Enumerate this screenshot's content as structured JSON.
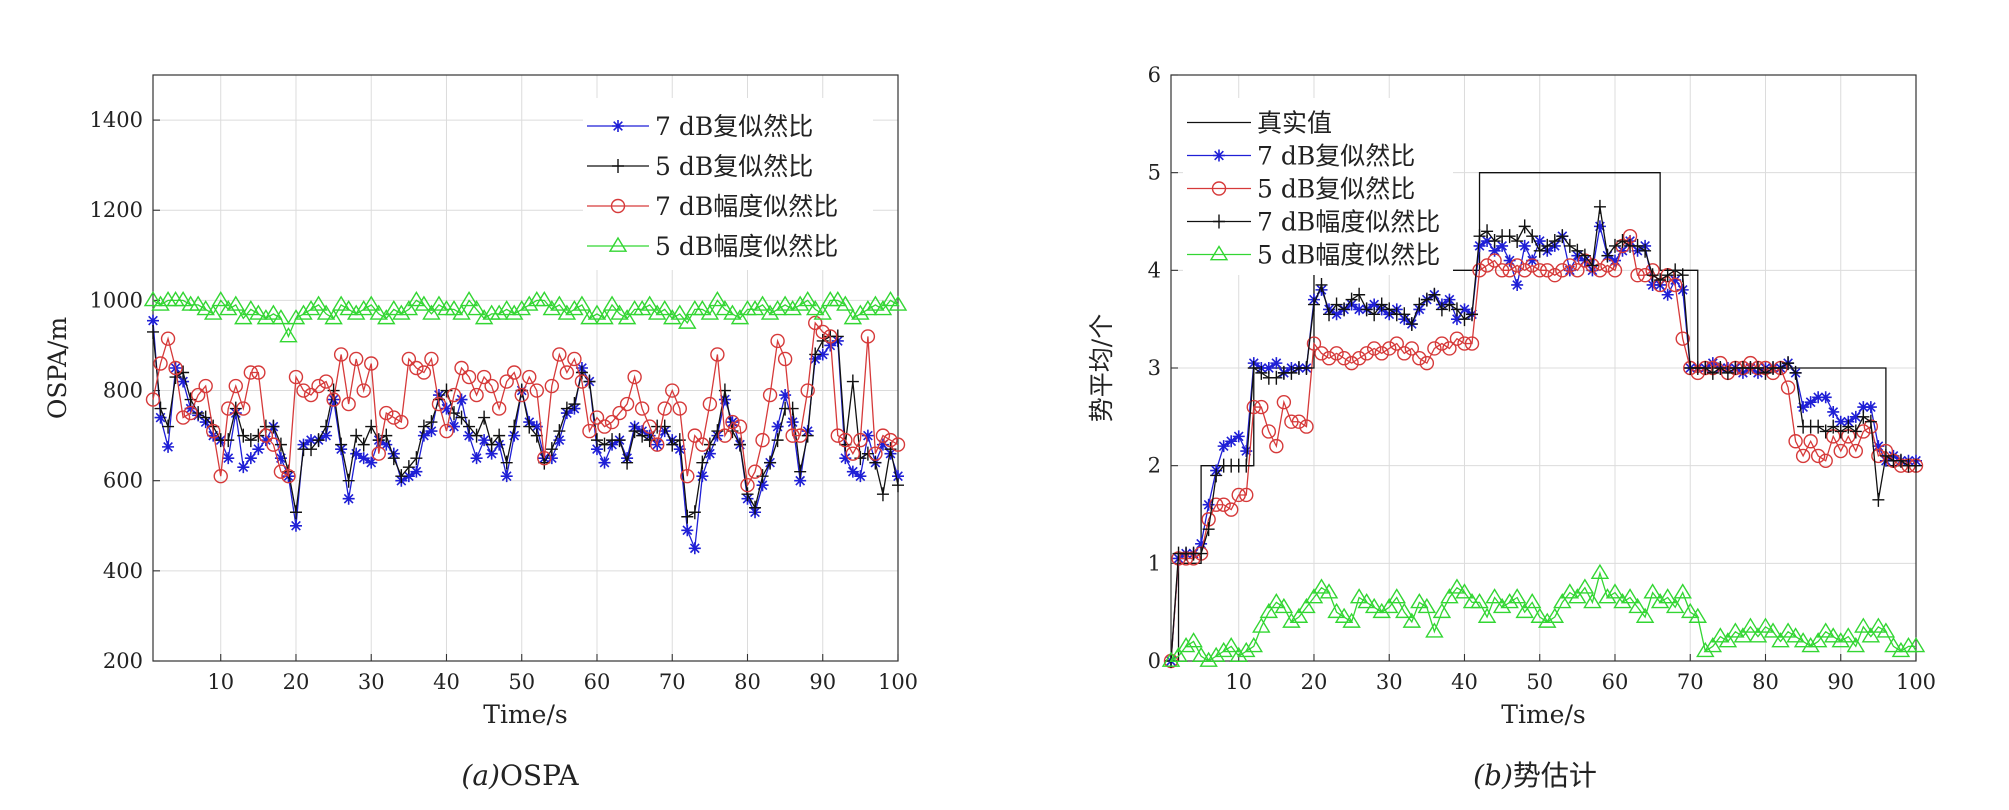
{
  "chart_data": [
    {
      "id": "a",
      "type": "line",
      "caption_letter": "(a)",
      "caption_text": "OSPA",
      "xlabel": "Time/s",
      "ylabel": "OSPA/m",
      "xlim": [
        1,
        100
      ],
      "ylim": [
        200,
        1500
      ],
      "xticks": [
        10,
        20,
        30,
        40,
        50,
        60,
        70,
        80,
        90,
        100
      ],
      "yticks": [
        200,
        400,
        600,
        800,
        1000,
        1200,
        1400
      ],
      "grid": true,
      "legend_position": "top-right",
      "series": [
        {
          "name": "7 dB复似然比",
          "color": "#1f1fd6",
          "marker": "star",
          "values": [
            955,
            740,
            675,
            850,
            820,
            760,
            745,
            730,
            700,
            690,
            650,
            750,
            630,
            650,
            670,
            690,
            720,
            650,
            610,
            500,
            680,
            690,
            690,
            700,
            780,
            670,
            560,
            660,
            650,
            640,
            690,
            680,
            660,
            600,
            610,
            620,
            700,
            710,
            790,
            760,
            720,
            780,
            700,
            650,
            690,
            660,
            680,
            610,
            700,
            800,
            730,
            720,
            650,
            650,
            690,
            750,
            760,
            850,
            820,
            670,
            640,
            680,
            690,
            650,
            720,
            710,
            700,
            680,
            710,
            690,
            670,
            490,
            450,
            610,
            660,
            700,
            780,
            730,
            680,
            560,
            530,
            590,
            640,
            720,
            790,
            730,
            600,
            710,
            870,
            880,
            900,
            910,
            650,
            620,
            610,
            700,
            640,
            680,
            660,
            610
          ]
        },
        {
          "name": "5 dB复似然比",
          "color": "#111111",
          "marker": "plus",
          "values": [
            930,
            760,
            720,
            830,
            840,
            780,
            750,
            740,
            720,
            690,
            690,
            760,
            700,
            690,
            700,
            720,
            720,
            680,
            620,
            530,
            670,
            670,
            690,
            720,
            800,
            680,
            600,
            700,
            680,
            720,
            690,
            700,
            650,
            610,
            630,
            650,
            720,
            730,
            780,
            800,
            750,
            740,
            720,
            700,
            740,
            680,
            700,
            640,
            720,
            800,
            720,
            700,
            640,
            670,
            710,
            760,
            770,
            840,
            820,
            690,
            680,
            690,
            690,
            640,
            710,
            700,
            690,
            720,
            720,
            680,
            690,
            520,
            530,
            640,
            680,
            710,
            800,
            710,
            680,
            570,
            540,
            610,
            640,
            690,
            760,
            760,
            620,
            700,
            880,
            910,
            920,
            920,
            680,
            820,
            650,
            660,
            640,
            570,
            670,
            590
          ]
        },
        {
          "name": "7 dB幅度似然比",
          "color": "#d63a3a",
          "marker": "circle",
          "values": [
            780,
            860,
            915,
            850,
            740,
            750,
            790,
            810,
            710,
            610,
            760,
            810,
            760,
            840,
            840,
            700,
            680,
            620,
            610,
            830,
            800,
            790,
            810,
            820,
            780,
            880,
            770,
            870,
            800,
            860,
            660,
            750,
            740,
            730,
            870,
            850,
            840,
            870,
            770,
            710,
            790,
            850,
            830,
            790,
            830,
            810,
            760,
            820,
            840,
            790,
            830,
            800,
            650,
            810,
            880,
            840,
            870,
            820,
            710,
            740,
            720,
            730,
            750,
            770,
            830,
            760,
            720,
            680,
            760,
            800,
            760,
            610,
            700,
            680,
            770,
            880,
            700,
            730,
            720,
            590,
            620,
            690,
            790,
            910,
            870,
            700,
            700,
            800,
            950,
            930,
            920,
            700,
            690,
            660,
            690,
            920,
            660,
            700,
            690,
            680
          ]
        },
        {
          "name": "5 dB幅度似然比",
          "color": "#33d633",
          "marker": "triangle",
          "values": [
            1000,
            990,
            1000,
            1000,
            1000,
            990,
            990,
            980,
            970,
            1000,
            980,
            990,
            960,
            980,
            970,
            960,
            970,
            960,
            920,
            960,
            970,
            980,
            990,
            970,
            960,
            990,
            980,
            970,
            980,
            990,
            970,
            960,
            980,
            970,
            980,
            1000,
            990,
            970,
            990,
            980,
            980,
            970,
            1000,
            980,
            960,
            970,
            970,
            980,
            970,
            980,
            990,
            1000,
            1000,
            980,
            990,
            970,
            980,
            990,
            960,
            970,
            960,
            990,
            970,
            960,
            980,
            980,
            990,
            970,
            980,
            960,
            970,
            950,
            980,
            980,
            970,
            1000,
            980,
            970,
            960,
            980,
            980,
            990,
            970,
            980,
            990,
            980,
            990,
            1000,
            980,
            970,
            1000,
            1000,
            990,
            960,
            970,
            980,
            990,
            980,
            1000,
            990
          ]
        }
      ]
    },
    {
      "id": "b",
      "type": "line",
      "caption_letter": "(b)",
      "caption_text": "势估计",
      "xlabel": "Time/s",
      "ylabel": "势平均/个",
      "xlim": [
        1,
        100
      ],
      "ylim": [
        0,
        6
      ],
      "xticks": [
        10,
        20,
        30,
        40,
        50,
        60,
        70,
        80,
        90,
        100
      ],
      "yticks": [
        0,
        1,
        2,
        3,
        4,
        5,
        6
      ],
      "grid": true,
      "legend_position": "top-left",
      "series": [
        {
          "name": "真实值",
          "color": "#111111",
          "marker": "none",
          "step": true,
          "values": [
            0,
            1,
            1,
            1,
            2,
            2,
            2,
            2,
            2,
            2,
            2,
            3,
            3,
            3,
            3,
            3,
            3,
            3,
            3,
            4,
            4,
            4,
            4,
            4,
            4,
            4,
            4,
            4,
            4,
            4,
            4,
            4,
            4,
            4,
            4,
            4,
            4,
            4,
            4,
            4,
            4,
            5,
            5,
            5,
            5,
            5,
            5,
            5,
            5,
            5,
            5,
            5,
            5,
            5,
            5,
            5,
            5,
            5,
            5,
            5,
            5,
            5,
            5,
            5,
            5,
            4,
            4,
            4,
            4,
            4,
            3,
            3,
            3,
            3,
            3,
            3,
            3,
            3,
            3,
            3,
            3,
            3,
            3,
            3,
            3,
            3,
            3,
            3,
            3,
            3,
            3,
            3,
            3,
            3,
            3,
            2,
            2,
            2,
            2,
            2
          ]
        },
        {
          "name": "7 dB复似然比",
          "color": "#1f1fd6",
          "marker": "star",
          "values": [
            0,
            1.05,
            1.1,
            1.1,
            1.2,
            1.6,
            1.95,
            2.2,
            2.25,
            2.3,
            2.15,
            3.05,
            3.0,
            3.0,
            3.05,
            2.95,
            3.0,
            3.0,
            3.0,
            3.7,
            3.8,
            3.6,
            3.55,
            3.6,
            3.65,
            3.6,
            3.6,
            3.65,
            3.6,
            3.55,
            3.6,
            3.5,
            3.45,
            3.6,
            3.7,
            3.75,
            3.65,
            3.7,
            3.5,
            3.6,
            3.55,
            4.25,
            4.3,
            4.2,
            4.25,
            4.1,
            3.85,
            4.25,
            4.1,
            4.3,
            4.2,
            4.25,
            4.35,
            4.0,
            4.15,
            4.1,
            4.0,
            4.45,
            4.15,
            4.1,
            4.2,
            4.3,
            4.2,
            4.25,
            3.85,
            3.85,
            3.75,
            3.9,
            3.8,
            3.0,
            3.0,
            3.0,
            3.05,
            3.0,
            3.0,
            3.0,
            2.95,
            3.0,
            2.95,
            3.0,
            3.0,
            3.0,
            3.05,
            2.95,
            2.6,
            2.65,
            2.7,
            2.7,
            2.55,
            2.45,
            2.45,
            2.5,
            2.6,
            2.6,
            2.2,
            2.05,
            2.1,
            2.05,
            2.05,
            2.05
          ]
        },
        {
          "name": "5 dB复似然比",
          "color": "#d63a3a",
          "marker": "circle",
          "values": [
            0,
            1.05,
            1.05,
            1.05,
            1.1,
            1.45,
            1.6,
            1.6,
            1.55,
            1.7,
            1.7,
            2.6,
            2.6,
            2.35,
            2.2,
            2.65,
            2.45,
            2.45,
            2.4,
            3.25,
            3.15,
            3.1,
            3.15,
            3.1,
            3.05,
            3.1,
            3.15,
            3.2,
            3.15,
            3.2,
            3.25,
            3.15,
            3.2,
            3.1,
            3.05,
            3.2,
            3.25,
            3.2,
            3.3,
            3.25,
            3.25,
            4.0,
            4.05,
            4.1,
            4.0,
            4.0,
            4.05,
            4.0,
            4.05,
            4.0,
            4.0,
            3.95,
            4.0,
            4.05,
            4.0,
            4.1,
            4.05,
            4.0,
            4.05,
            4.0,
            4.25,
            4.35,
            3.95,
            3.95,
            4.0,
            3.85,
            3.95,
            3.85,
            3.3,
            3.0,
            2.95,
            3.0,
            3.0,
            3.05,
            2.95,
            3.0,
            3.0,
            3.05,
            3.0,
            3.0,
            2.95,
            3.0,
            2.8,
            2.25,
            2.1,
            2.25,
            2.1,
            2.05,
            2.3,
            2.15,
            2.3,
            2.15,
            2.35,
            2.4,
            2.1,
            2.15,
            2.05,
            2.0,
            2.0,
            2.0
          ]
        },
        {
          "name": "7 dB幅度似然比",
          "color": "#111111",
          "marker": "plus",
          "values": [
            0,
            1.1,
            1.1,
            1.1,
            1.1,
            1.35,
            1.9,
            2.0,
            2.0,
            2.0,
            2.0,
            3.0,
            2.95,
            2.9,
            2.9,
            2.95,
            2.95,
            3.0,
            3.0,
            3.65,
            3.85,
            3.55,
            3.65,
            3.6,
            3.7,
            3.75,
            3.6,
            3.55,
            3.65,
            3.6,
            3.55,
            3.55,
            3.45,
            3.65,
            3.7,
            3.75,
            3.6,
            3.65,
            3.6,
            3.5,
            3.55,
            4.35,
            4.4,
            4.3,
            4.35,
            4.35,
            4.3,
            4.45,
            4.35,
            4.2,
            4.25,
            4.3,
            4.35,
            4.25,
            4.2,
            4.15,
            4.05,
            4.65,
            4.15,
            4.25,
            4.3,
            4.25,
            4.25,
            4.2,
            3.95,
            3.9,
            3.95,
            4.0,
            3.95,
            3.0,
            3.0,
            3.0,
            2.95,
            3.0,
            2.95,
            3.0,
            3.0,
            3.0,
            3.0,
            2.95,
            3.0,
            3.0,
            3.05,
            2.95,
            2.4,
            2.4,
            2.4,
            2.35,
            2.4,
            2.35,
            2.4,
            2.35,
            2.5,
            2.45,
            1.65,
            2.1,
            2.05,
            2.05,
            2.0,
            2.0
          ]
        },
        {
          "name": "5 dB幅度似然比",
          "color": "#33d633",
          "marker": "triangle",
          "values": [
            0,
            0.05,
            0.15,
            0.2,
            0.05,
            0.0,
            0.05,
            0.1,
            0.15,
            0.05,
            0.1,
            0.15,
            0.35,
            0.5,
            0.6,
            0.55,
            0.4,
            0.45,
            0.55,
            0.65,
            0.75,
            0.7,
            0.5,
            0.45,
            0.4,
            0.65,
            0.6,
            0.55,
            0.5,
            0.55,
            0.65,
            0.5,
            0.4,
            0.6,
            0.55,
            0.3,
            0.5,
            0.65,
            0.75,
            0.7,
            0.6,
            0.6,
            0.45,
            0.65,
            0.55,
            0.6,
            0.65,
            0.5,
            0.6,
            0.45,
            0.4,
            0.45,
            0.6,
            0.7,
            0.65,
            0.75,
            0.6,
            0.9,
            0.65,
            0.7,
            0.6,
            0.65,
            0.55,
            0.45,
            0.7,
            0.6,
            0.65,
            0.55,
            0.7,
            0.5,
            0.45,
            0.1,
            0.15,
            0.25,
            0.2,
            0.3,
            0.25,
            0.35,
            0.25,
            0.35,
            0.3,
            0.2,
            0.3,
            0.25,
            0.2,
            0.15,
            0.2,
            0.3,
            0.25,
            0.2,
            0.25,
            0.15,
            0.35,
            0.25,
            0.35,
            0.3,
            0.15,
            0.1,
            0.15,
            0.15
          ]
        }
      ]
    }
  ]
}
